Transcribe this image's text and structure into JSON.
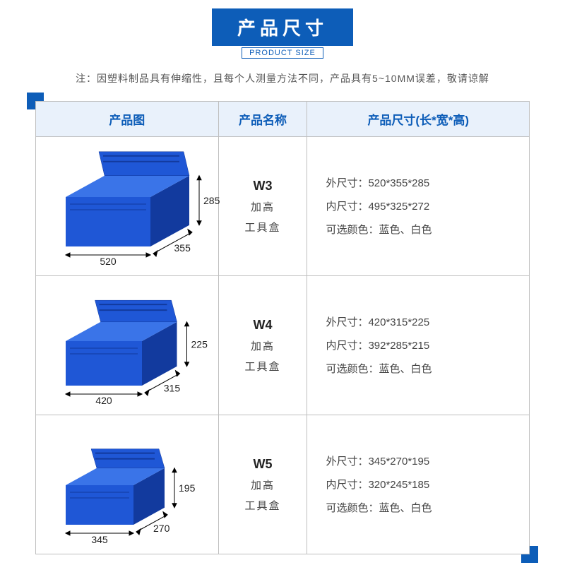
{
  "header": {
    "title": "产品尺寸",
    "subtitle": "PRODUCT SIZE",
    "note": "注：因塑料制品具有伸缩性，且每个人测量方法不同，产品具有5~10MM误差，敬请谅解"
  },
  "columns": {
    "image": "产品图",
    "name": "产品名称",
    "dims": "产品尺寸(长*宽*高)"
  },
  "labels": {
    "outer": "外尺寸：",
    "inner": "内尺寸：",
    "colors": "可选颜色："
  },
  "rows": [
    {
      "code": "W3",
      "name_l1": "加高",
      "name_l2": "工具盒",
      "len": "520",
      "wid": "355",
      "hgt": "285",
      "outer": "520*355*285",
      "inner": "495*325*272",
      "colors": "蓝色、白色"
    },
    {
      "code": "W4",
      "name_l1": "加高",
      "name_l2": "工具盒",
      "len": "420",
      "wid": "315",
      "hgt": "225",
      "outer": "420*315*225",
      "inner": "392*285*215",
      "colors": "蓝色、白色"
    },
    {
      "code": "W5",
      "name_l1": "加高",
      "name_l2": "工具盒",
      "len": "345",
      "wid": "270",
      "hgt": "195",
      "outer": "345*270*195",
      "inner": "320*245*185",
      "colors": "蓝色、白色"
    }
  ],
  "style": {
    "brand_color": "#0d5db8",
    "box_fill": "#1f57d6",
    "box_dark": "#123a9e",
    "box_light": "#3a74e8",
    "header_bg": "#e9f1fb",
    "border": "#bfbfbf"
  }
}
